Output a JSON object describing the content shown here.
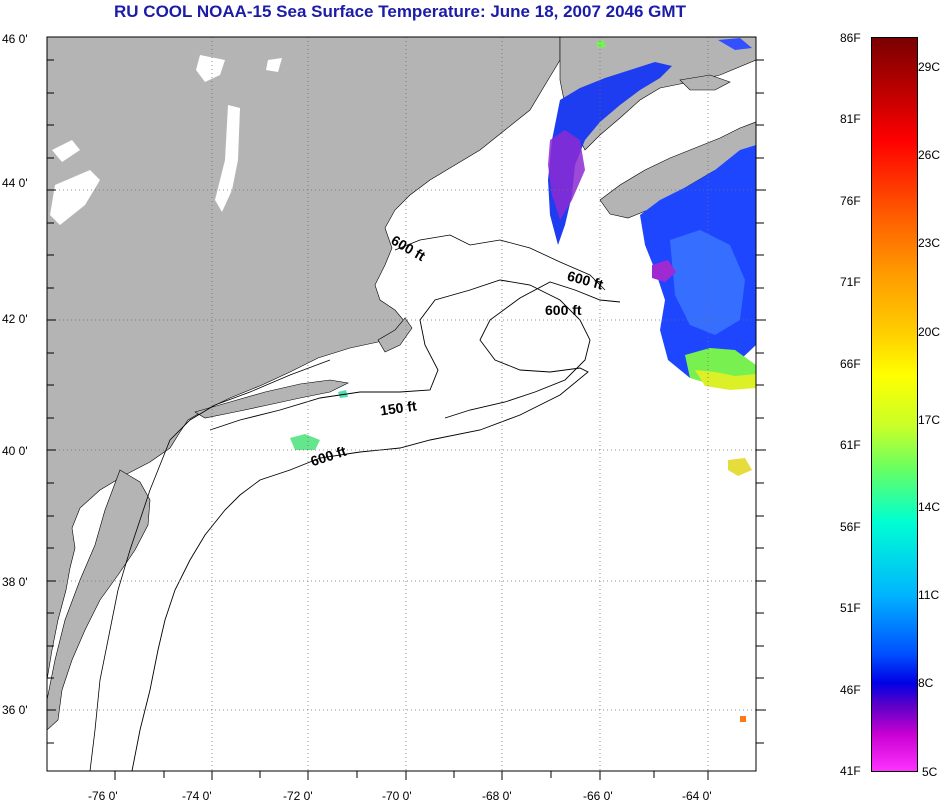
{
  "title": "RU COOL  NOAA-15  Sea Surface Temperature:  June 18, 2007 2046 GMT",
  "axes": {
    "lat_labels": [
      "46 0'",
      "44 0'",
      "42 0'",
      "40 0'",
      "38 0'",
      "36 0'"
    ],
    "lon_labels": [
      "-76 0'",
      "-74 0'",
      "-72 0'",
      "-70 0'",
      "-68 0'",
      "-66 0'",
      "-64 0'"
    ]
  },
  "contour_labels": [
    "600 ft",
    "600 ft",
    "600 ft",
    "150 ft",
    "600 ft"
  ],
  "colorbar": {
    "fahrenheit_labels": [
      "86F",
      "81F",
      "76F",
      "71F",
      "66F",
      "61F",
      "56F",
      "51F",
      "46F",
      "41F"
    ],
    "celsius_labels": [
      "29C",
      "26C",
      "23C",
      "20C",
      "17C",
      "14C",
      "11C",
      "8C",
      "5C"
    ]
  },
  "colors": {
    "land": "#b4b4b4",
    "title": "#1c1ca8",
    "grid": "#707070"
  }
}
